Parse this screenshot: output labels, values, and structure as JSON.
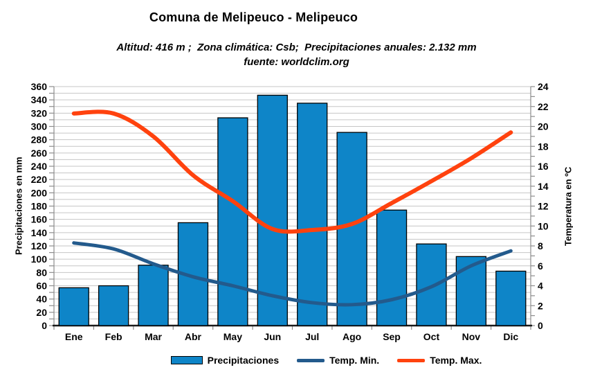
{
  "header": {
    "title": "Comuna de Melipeuco - Melipeuco",
    "subtitle_line1": "Altitud: 416 m ;  Zona climática: Csb;  Precipitaciones anuales: 2.132 mm",
    "subtitle_line2": "fuente: worldclim.org"
  },
  "chart_data": {
    "type": "bar+line",
    "title": "Comuna de Melipeuco - Melipeuco",
    "categories": [
      "Ene",
      "Feb",
      "Mar",
      "Abr",
      "May",
      "Jun",
      "Jul",
      "Ago",
      "Sep",
      "Oct",
      "Nov",
      "Dic"
    ],
    "series": [
      {
        "name": "Precipitaciones",
        "type": "bar",
        "axis": "left",
        "color": "#0E85C8",
        "values": [
          57,
          60,
          91,
          155,
          313,
          347,
          335,
          291,
          174,
          123,
          104,
          82
        ]
      },
      {
        "name": "Temp. Min.",
        "type": "line",
        "axis": "right",
        "color": "#235A8C",
        "values": [
          8.3,
          7.7,
          6.2,
          4.9,
          4.0,
          3.0,
          2.3,
          2.1,
          2.6,
          3.9,
          6.0,
          7.5
        ]
      },
      {
        "name": "Temp. Max.",
        "type": "line",
        "axis": "right",
        "color": "#FF420E",
        "values": [
          21.3,
          21.3,
          19.0,
          15.1,
          12.5,
          9.7,
          9.6,
          10.2,
          12.3,
          14.5,
          16.8,
          19.4
        ]
      }
    ],
    "left_axis": {
      "title": "Precipitaciones en mm",
      "min": 0,
      "max": 360,
      "tick_step": 20,
      "minor_step": 10
    },
    "right_axis": {
      "title": "Temperatura en ºC",
      "min": 0,
      "max": 24,
      "tick_step": 2,
      "minor_step": 1
    },
    "grid": "horizontal",
    "legend_position": "bottom",
    "style": {
      "grid_color": "#C6C6C6",
      "axis_color": "#8C8C8C",
      "baseline_color": "#1A1A1A",
      "bar_border_color": "#000000",
      "background": "#FFFFFF"
    }
  }
}
